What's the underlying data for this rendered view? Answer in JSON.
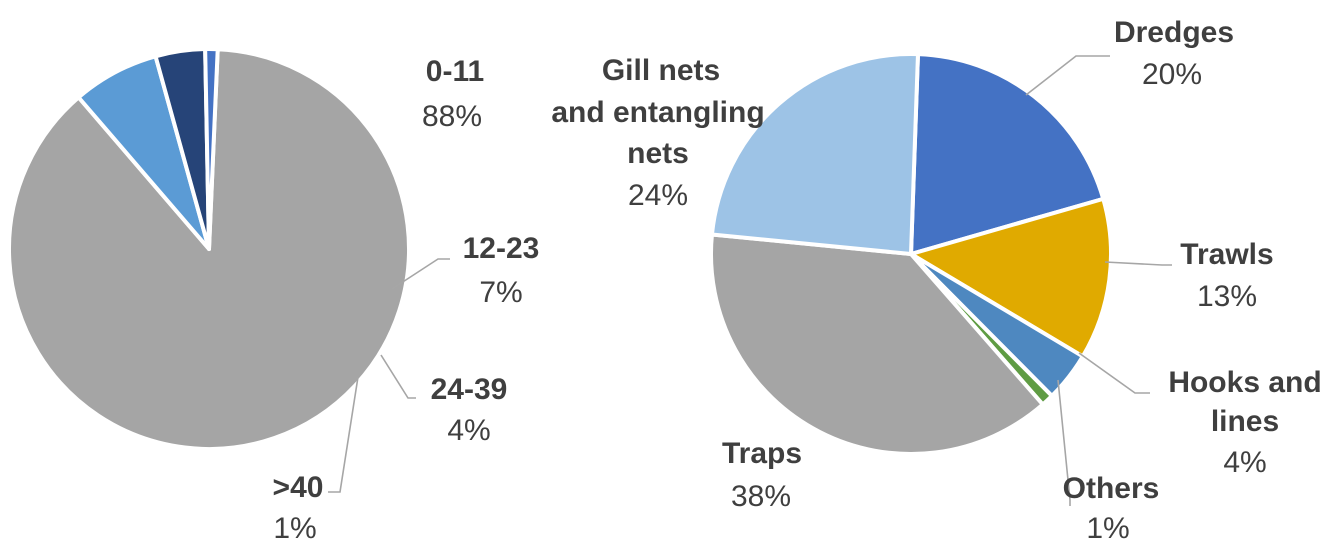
{
  "chart_data": [
    {
      "type": "pie",
      "slices": [
        {
          "label": "0-11",
          "value": 88,
          "value_label": "88%",
          "color": "#a5a5a5"
        },
        {
          "label": "12-23",
          "value": 7,
          "value_label": "7%",
          "color": "#5b9bd5"
        },
        {
          "label": "24-39",
          "value": 4,
          "value_label": "4%",
          "color": "#264478"
        },
        {
          "label": ">40",
          "value": 1,
          "value_label": "1%",
          "color": "#4472c4"
        }
      ],
      "data_labels": "category name and percentage, outside with leader lines",
      "legend": "none"
    },
    {
      "type": "pie",
      "slices": [
        {
          "label": "Dredges",
          "value": 20,
          "value_label": "20%",
          "color": "#4472c4"
        },
        {
          "label": "Trawls",
          "value": 13,
          "value_label": "13%",
          "color": "#e0aa00"
        },
        {
          "label": "Hooks and lines",
          "value": 4,
          "value_label": "4%",
          "color": "#4e88c0"
        },
        {
          "label": "Others",
          "value": 1,
          "value_label": "1%",
          "color": "#5f9c43"
        },
        {
          "label": "Traps",
          "value": 38,
          "value_label": "38%",
          "color": "#a5a5a5"
        },
        {
          "label": "Gill nets and entangling nets",
          "value": 24,
          "value_label": "24%",
          "color": "#9dc3e6"
        }
      ],
      "data_labels": "category name and percentage, outside with leader lines",
      "legend": "none"
    }
  ]
}
